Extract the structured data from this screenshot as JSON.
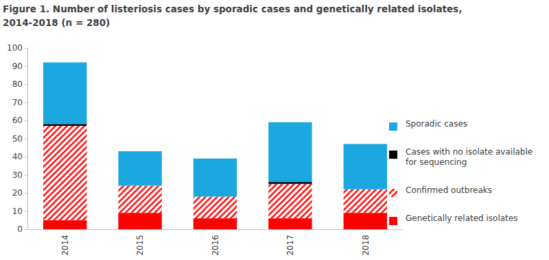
{
  "chart_data": {
    "type": "bar",
    "stacked": true,
    "title": "Figure 1. Number of listeriosis cases by sporadic cases and genetically related isolates,\n2014-2018 (n = 280)",
    "categories": [
      "2014",
      "2015",
      "2016",
      "2017",
      "2018"
    ],
    "series": [
      {
        "name": "Genetically related isolates",
        "color": "#ff0000",
        "values": [
          5,
          9,
          6,
          6,
          9
        ]
      },
      {
        "name": "Confirmed outbreaks",
        "color": "#ff0000",
        "line_style": "hatched",
        "values": [
          52,
          15,
          12,
          19,
          13
        ]
      },
      {
        "name": "Cases with no isolate available for sequencing",
        "color": "#000000",
        "values": [
          1,
          0,
          0,
          1,
          0
        ]
      },
      {
        "name": "Sporadic cases",
        "color": "#1ba7df",
        "values": [
          34,
          19,
          21,
          33,
          25
        ]
      }
    ],
    "ylim": [
      0,
      100
    ],
    "yticks": [
      0,
      10,
      20,
      30,
      40,
      50,
      60,
      70,
      80,
      90,
      100
    ],
    "grid": false,
    "legend": "right"
  }
}
